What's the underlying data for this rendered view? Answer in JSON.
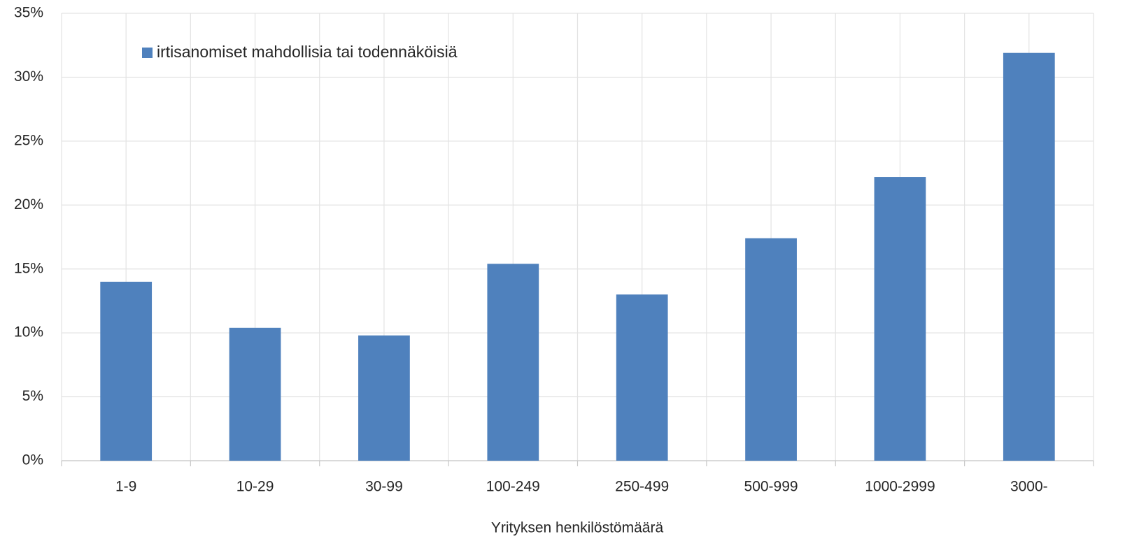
{
  "chart_data": {
    "type": "bar",
    "x_label": "Yrityksen henkilöstömäärä",
    "categories": [
      "1-9",
      "10-29",
      "30-99",
      "100-249",
      "250-499",
      "500-999",
      "1000-2999",
      "3000-"
    ],
    "series": [
      {
        "name": "irtisanomiset mahdollisia tai todennäköisiä",
        "color": "#4f81bd",
        "values": [
          14.0,
          10.4,
          9.8,
          15.4,
          13.0,
          17.4,
          22.2,
          31.9
        ]
      }
    ],
    "ylim": [
      0,
      35
    ],
    "yticks": [
      {
        "value": 0,
        "label": "0%"
      },
      {
        "value": 5,
        "label": "5%"
      },
      {
        "value": 10,
        "label": "10%"
      },
      {
        "value": 15,
        "label": "15%"
      },
      {
        "value": 20,
        "label": "20%"
      },
      {
        "value": 25,
        "label": "25%"
      },
      {
        "value": 30,
        "label": "30%"
      },
      {
        "value": 35,
        "label": "35%"
      }
    ],
    "grid": true,
    "legend": "top-left"
  }
}
